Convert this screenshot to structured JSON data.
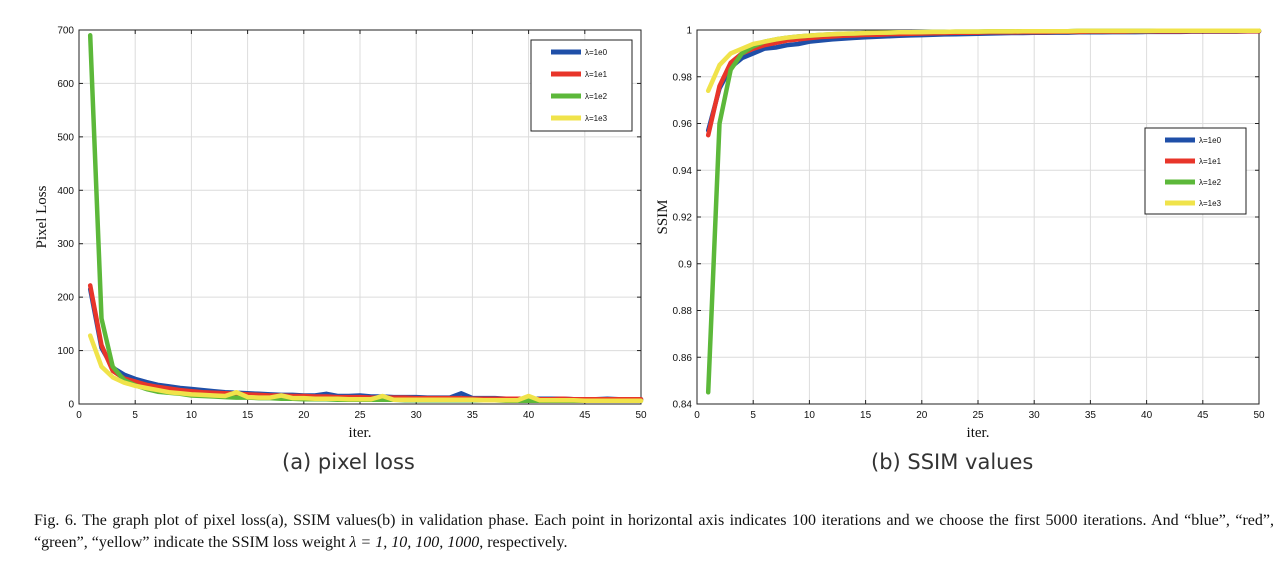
{
  "chart_data": [
    {
      "type": "line",
      "title": "",
      "xlabel": "iter.",
      "ylabel": "Pixel Loss",
      "xlim": [
        0,
        50
      ],
      "ylim": [
        0,
        700
      ],
      "xticks": [
        0,
        5,
        10,
        15,
        20,
        25,
        30,
        35,
        40,
        45,
        50
      ],
      "yticks": [
        0,
        100,
        200,
        300,
        400,
        500,
        600,
        700
      ],
      "ytick_labels": [
        "0",
        "100",
        "200",
        "300",
        "400",
        "500",
        "600",
        "700"
      ],
      "grid": true,
      "legend_position": "top-right",
      "x": [
        1,
        2,
        3,
        4,
        5,
        6,
        7,
        8,
        9,
        10,
        11,
        12,
        13,
        14,
        15,
        16,
        17,
        18,
        19,
        20,
        21,
        22,
        23,
        24,
        25,
        26,
        27,
        28,
        29,
        30,
        31,
        32,
        33,
        34,
        35,
        36,
        37,
        38,
        39,
        40,
        41,
        42,
        43,
        44,
        45,
        46,
        47,
        48,
        49,
        50
      ],
      "series": [
        {
          "name": "λ=1e0",
          "color": "#1f4fa8",
          "values": [
            215,
            105,
            68,
            55,
            47,
            41,
            36,
            33,
            30,
            28,
            26,
            24,
            22,
            21,
            20,
            19,
            18,
            17,
            17,
            16,
            16,
            19,
            15,
            15,
            16,
            14,
            14,
            13,
            13,
            13,
            12,
            12,
            12,
            20,
            11,
            11,
            11,
            10,
            10,
            10,
            10,
            10,
            10,
            9,
            9,
            9,
            10,
            9,
            9,
            9
          ]
        },
        {
          "name": "λ=1e1",
          "color": "#e8352a",
          "values": [
            222,
            110,
            62,
            48,
            42,
            36,
            32,
            29,
            26,
            24,
            22,
            21,
            20,
            19,
            18,
            17,
            16,
            16,
            15,
            15,
            14,
            14,
            13,
            13,
            13,
            12,
            12,
            12,
            12,
            11,
            11,
            11,
            11,
            11,
            10,
            10,
            10,
            10,
            10,
            10,
            9,
            9,
            10,
            9,
            9,
            9,
            9,
            9,
            9,
            9
          ]
        },
        {
          "name": "λ=1e2",
          "color": "#5cb83a",
          "values": [
            690,
            160,
            70,
            45,
            35,
            28,
            23,
            21,
            19,
            16,
            15,
            14,
            13,
            12,
            12,
            11,
            11,
            10,
            10,
            9,
            9,
            9,
            8,
            8,
            8,
            8,
            8,
            8,
            7,
            7,
            7,
            7,
            7,
            7,
            7,
            7,
            7,
            6,
            6,
            6,
            6,
            6,
            6,
            6,
            6,
            6,
            6,
            6,
            6,
            6
          ]
        },
        {
          "name": "λ=1e3",
          "color": "#f0e34a",
          "values": [
            128,
            70,
            50,
            40,
            34,
            30,
            26,
            22,
            20,
            18,
            17,
            16,
            15,
            22,
            13,
            12,
            12,
            16,
            11,
            11,
            10,
            10,
            10,
            9,
            9,
            9,
            15,
            8,
            8,
            8,
            8,
            8,
            8,
            8,
            8,
            7,
            7,
            7,
            7,
            15,
            7,
            7,
            7,
            7,
            6,
            6,
            6,
            6,
            6,
            6
          ]
        }
      ]
    },
    {
      "type": "line",
      "title": "",
      "xlabel": "iter.",
      "ylabel": "SSIM",
      "xlim": [
        0,
        50
      ],
      "ylim": [
        0.84,
        1.0
      ],
      "xticks": [
        0,
        5,
        10,
        15,
        20,
        25,
        30,
        35,
        40,
        45,
        50
      ],
      "yticks": [
        0.84,
        0.86,
        0.88,
        0.9,
        0.92,
        0.94,
        0.96,
        0.98,
        1.0
      ],
      "ytick_labels": [
        "0.84",
        "0.86",
        "0.88",
        "0.9",
        "0.92",
        "0.94",
        "0.96",
        "0.98",
        "1"
      ],
      "grid": true,
      "legend_position": "right",
      "x": [
        1,
        2,
        3,
        4,
        5,
        6,
        7,
        8,
        9,
        10,
        11,
        12,
        13,
        14,
        15,
        16,
        17,
        18,
        19,
        20,
        21,
        22,
        23,
        24,
        25,
        26,
        27,
        28,
        29,
        30,
        31,
        32,
        33,
        34,
        35,
        36,
        37,
        38,
        39,
        40,
        41,
        42,
        43,
        44,
        45,
        46,
        47,
        48,
        49,
        50
      ],
      "series": [
        {
          "name": "λ=1e0",
          "color": "#1f4fa8",
          "values": [
            0.957,
            0.975,
            0.984,
            0.988,
            0.99,
            0.992,
            0.9925,
            0.9935,
            0.994,
            0.995,
            0.9955,
            0.996,
            0.9963,
            0.9966,
            0.9969,
            0.9971,
            0.9973,
            0.9975,
            0.9977,
            0.9978,
            0.998,
            0.9981,
            0.9982,
            0.9983,
            0.9984,
            0.9985,
            0.9986,
            0.9987,
            0.9987,
            0.9988,
            0.9988,
            0.9989,
            0.9989,
            0.999,
            0.999,
            0.999,
            0.9991,
            0.9991,
            0.9991,
            0.9992,
            0.9992,
            0.9992,
            0.9992,
            0.9993,
            0.9993,
            0.9993,
            0.9993,
            0.9993,
            0.9994,
            0.9994
          ]
        },
        {
          "name": "λ=1e1",
          "color": "#e8352a",
          "values": [
            0.955,
            0.976,
            0.986,
            0.99,
            0.992,
            0.9935,
            0.9945,
            0.9955,
            0.996,
            0.9965,
            0.997,
            0.9972,
            0.9975,
            0.9977,
            0.9979,
            0.998,
            0.9982,
            0.9983,
            0.9984,
            0.9985,
            0.9986,
            0.9987,
            0.9988,
            0.9988,
            0.9989,
            0.999,
            0.999,
            0.999,
            0.9991,
            0.9991,
            0.9991,
            0.9992,
            0.9992,
            0.9992,
            0.9993,
            0.9993,
            0.9993,
            0.9993,
            0.9994,
            0.9994,
            0.9994,
            0.9994,
            0.9994,
            0.9995,
            0.9995,
            0.9995,
            0.9995,
            0.9995,
            0.9995,
            0.9995
          ]
        },
        {
          "name": "λ=1e2",
          "color": "#5cb83a",
          "values": [
            0.845,
            0.96,
            0.983,
            0.99,
            0.993,
            0.995,
            0.996,
            0.9967,
            0.9972,
            0.9976,
            0.9979,
            0.9982,
            0.9984,
            0.9985,
            0.9987,
            0.9988,
            0.9989,
            0.999,
            0.999,
            0.9991,
            0.9992,
            0.9992,
            0.9993,
            0.9993,
            0.9993,
            0.9994,
            0.9994,
            0.9994,
            0.9995,
            0.9995,
            0.9995,
            0.9995,
            0.9995,
            0.9996,
            0.9996,
            0.9996,
            0.9996,
            0.9996,
            0.9996,
            0.9996,
            0.9997,
            0.9997,
            0.9997,
            0.9997,
            0.9997,
            0.9997,
            0.9997,
            0.9997,
            0.9997,
            0.9997
          ]
        },
        {
          "name": "λ=1e3",
          "color": "#f0e34a",
          "values": [
            0.974,
            0.985,
            0.99,
            0.992,
            0.994,
            0.995,
            0.996,
            0.9967,
            0.9972,
            0.9976,
            0.9979,
            0.9982,
            0.9984,
            0.9985,
            0.9987,
            0.9988,
            0.9989,
            0.999,
            0.999,
            0.9991,
            0.9992,
            0.9992,
            0.9993,
            0.9993,
            0.9993,
            0.9994,
            0.9994,
            0.9994,
            0.9995,
            0.9995,
            0.9995,
            0.9995,
            0.9995,
            0.9996,
            0.9996,
            0.9996,
            0.9996,
            0.9996,
            0.9996,
            0.9996,
            0.9997,
            0.9997,
            0.9997,
            0.9997,
            0.9997,
            0.9997,
            0.9997,
            0.9997,
            0.9997,
            0.9997
          ]
        }
      ]
    }
  ],
  "subcaptions": {
    "a": "(a) pixel loss",
    "b": "(b) SSIM values"
  },
  "caption": {
    "part1": "Fig. 6.   The graph plot of pixel loss(a), SSIM values(b) in validation phase. Each point in horizontal axis indicates 100 iterations and we choose the first 5000 iterations. And “blue”, “red”, “green”, “yellow” indicate the SSIM loss weight ",
    "lambda_expr": "λ = 1, 10, 100, 1000",
    "part2": ", respectively."
  }
}
